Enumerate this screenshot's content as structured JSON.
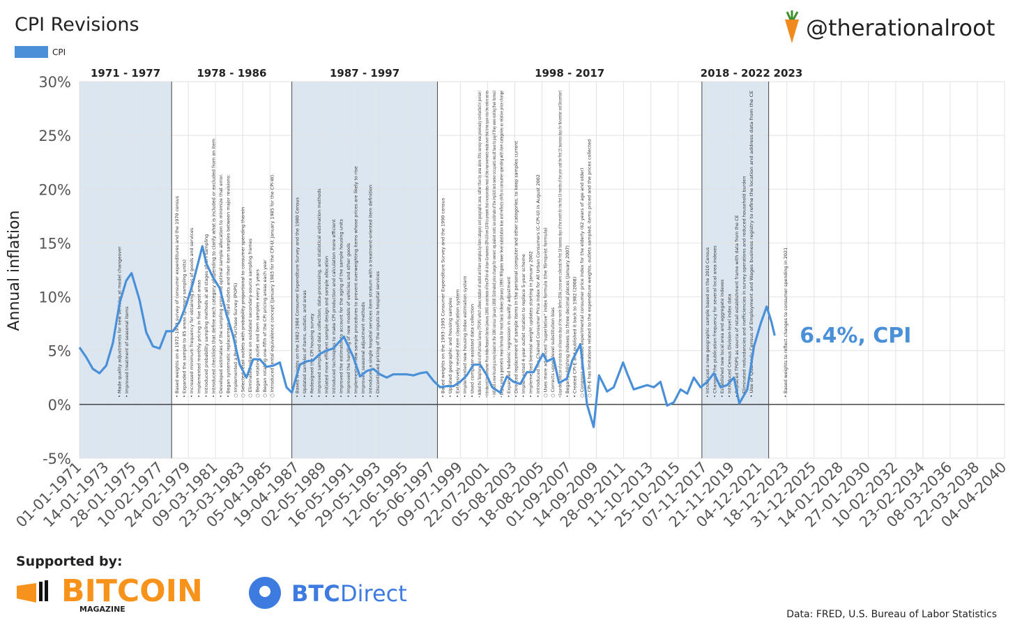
{
  "chart_data": {
    "type": "line",
    "title": "CPI Revisions",
    "watermark": "@therationalroot",
    "ylabel": "Annual inflation",
    "series": [
      {
        "name": "CPI",
        "color": "#4a90d9",
        "x": [
          1971.0,
          1971.5,
          1972.0,
          1972.5,
          1973.0,
          1973.5,
          1974.0,
          1974.5,
          1974.9,
          1975.5,
          1976.0,
          1976.5,
          1977.0,
          1977.5,
          1978.0,
          1978.5,
          1979.0,
          1979.5,
          1980.2,
          1980.5,
          1981.0,
          1981.5,
          1982.0,
          1982.5,
          1983.0,
          1983.5,
          1984.0,
          1984.5,
          1985.0,
          1985.5,
          1986.0,
          1986.5,
          1986.9,
          1987.5,
          1988.0,
          1988.5,
          1989.0,
          1989.5,
          1990.0,
          1990.8,
          1991.5,
          1992.0,
          1992.5,
          1993.0,
          1993.5,
          1994.0,
          1994.5,
          1995.0,
          1995.5,
          1996.0,
          1996.5,
          1997.0,
          1997.5,
          1998.0,
          1998.5,
          1999.0,
          1999.5,
          2000.0,
          2000.5,
          2001.0,
          2001.5,
          2001.9,
          2002.5,
          2003.0,
          2003.5,
          2004.0,
          2004.5,
          2005.0,
          2005.7,
          2006.0,
          2006.5,
          2006.9,
          2007.5,
          2007.9,
          2008.5,
          2009.0,
          2009.5,
          2009.9,
          2010.5,
          2011.0,
          2011.7,
          2012.0,
          2012.5,
          2013.0,
          2013.5,
          2014.0,
          2014.5,
          2015.0,
          2015.5,
          2016.0,
          2016.5,
          2017.0,
          2017.5,
          2018.0,
          2018.5,
          2019.0,
          2019.5,
          2020.0,
          2020.4,
          2021.0,
          2021.5,
          2022.0,
          2022.45,
          2022.8,
          2023.05
        ],
        "values": [
          5.3,
          4.4,
          3.3,
          2.9,
          3.6,
          5.7,
          9.4,
          11.5,
          12.2,
          9.7,
          6.7,
          5.4,
          5.2,
          6.8,
          6.8,
          7.7,
          9.3,
          11.3,
          14.7,
          13.1,
          11.8,
          10.8,
          8.4,
          6.4,
          3.7,
          2.5,
          4.2,
          4.2,
          3.5,
          3.6,
          3.9,
          1.6,
          1.1,
          3.7,
          4.0,
          4.1,
          4.7,
          5.0,
          5.2,
          6.3,
          4.4,
          2.6,
          3.1,
          3.3,
          2.8,
          2.5,
          2.8,
          2.8,
          2.8,
          2.7,
          2.9,
          3.0,
          2.2,
          1.6,
          1.7,
          1.7,
          2.1,
          2.7,
          3.7,
          3.7,
          2.7,
          1.6,
          1.1,
          2.6,
          2.1,
          1.9,
          3.0,
          3.0,
          4.7,
          4.0,
          4.3,
          2.0,
          2.4,
          4.1,
          5.6,
          0.0,
          -2.1,
          2.7,
          1.2,
          1.6,
          3.9,
          2.9,
          1.4,
          1.6,
          1.8,
          1.6,
          2.1,
          -0.1,
          0.2,
          1.4,
          1.0,
          2.5,
          1.6,
          2.1,
          2.9,
          1.6,
          1.8,
          2.5,
          0.1,
          1.4,
          5.4,
          7.5,
          9.1,
          7.7,
          6.4
        ]
      }
    ],
    "end_label": "6.4%, CPI",
    "xlim": [
      1971.0,
      2040.26
    ],
    "xticks": [
      {
        "value": 1971.0,
        "label": "01-01-1971"
      },
      {
        "value": 1973.04,
        "label": "14-01-1973"
      },
      {
        "value": 1975.08,
        "label": "28-01-1975"
      },
      {
        "value": 1977.11,
        "label": "10-02-1977"
      },
      {
        "value": 1979.15,
        "label": "24-02-1979"
      },
      {
        "value": 1981.19,
        "label": "09-03-1981"
      },
      {
        "value": 1983.22,
        "label": "23-03-1983"
      },
      {
        "value": 1985.26,
        "label": "05-04-1985"
      },
      {
        "value": 1987.3,
        "label": "19-04-1987"
      },
      {
        "value": 1989.33,
        "label": "02-05-1989"
      },
      {
        "value": 1991.37,
        "label": "16-05-1991"
      },
      {
        "value": 1993.41,
        "label": "29-05-1993"
      },
      {
        "value": 1995.45,
        "label": "12-06-1995"
      },
      {
        "value": 1997.48,
        "label": "25-06-1997"
      },
      {
        "value": 1999.52,
        "label": "09-07-1999"
      },
      {
        "value": 2001.55,
        "label": "22-07-2001"
      },
      {
        "value": 2003.59,
        "label": "05-08-2003"
      },
      {
        "value": 2005.63,
        "label": "18-08-2005"
      },
      {
        "value": 2007.67,
        "label": "01-09-2007"
      },
      {
        "value": 2009.7,
        "label": "14-09-2009"
      },
      {
        "value": 2011.74,
        "label": "28-09-2011"
      },
      {
        "value": 2013.78,
        "label": "11-10-2013"
      },
      {
        "value": 2015.82,
        "label": "25-10-2015"
      },
      {
        "value": 2017.85,
        "label": "07-11-2017"
      },
      {
        "value": 2019.89,
        "label": "21-11-2019"
      },
      {
        "value": 2021.93,
        "label": "04-12-2021"
      },
      {
        "value": 2023.96,
        "label": "18-12-2023"
      },
      {
        "value": 2026.0,
        "label": "31-12-2025"
      },
      {
        "value": 2028.04,
        "label": "14-01-2028"
      },
      {
        "value": 2030.07,
        "label": "27-01-2030"
      },
      {
        "value": 2032.11,
        "label": "10-02-2032"
      },
      {
        "value": 2034.15,
        "label": "23-02-2034"
      },
      {
        "value": 2036.18,
        "label": "08-03-2036"
      },
      {
        "value": 2038.22,
        "label": "22-03-2038"
      },
      {
        "value": 2040.26,
        "label": "04-04-2040"
      }
    ],
    "ylim": [
      -5,
      30
    ],
    "yticks": [
      {
        "value": -5,
        "label": "-5%"
      },
      {
        "value": 0,
        "label": "0%"
      },
      {
        "value": 5,
        "label": "5%"
      },
      {
        "value": 10,
        "label": "10%"
      },
      {
        "value": 15,
        "label": "15%"
      },
      {
        "value": 20,
        "label": "20%"
      },
      {
        "value": 25,
        "label": "25%"
      },
      {
        "value": 30,
        "label": "30%"
      }
    ],
    "grid": true,
    "eras": [
      {
        "label": "1971 - 1977",
        "start": 1971.0,
        "end": 1977.9,
        "shaded": true,
        "notes": [
          "• Made quality adjustments for new vehicles at model changeover",
          "• Improved treatment of seasonal items"
        ]
      },
      {
        "label": "1978 - 1986",
        "start": 1977.9,
        "end": 1986.9,
        "shaded": false,
        "notes": [
          "• Based weights on a 1972–1973 survey of consumer expenditures and the 1970 census",
          "• Expanded the sample to 85 areas (primary sampling units)",
          "• Increased minimum frequency for obtaining prices of goods and services",
          "• Implemented monthly pricing in five largest areas",
          "• Introduced probability sampling methods at all stages of CPI sampling",
          "• Introduced checklists that define each category of spending to clarify what is included or excluded from an item",
          "• Developed estimates of the sampling error and optimal sample allocation to minimize that error.",
          "• Began systematic replacement of retail outlets and their item samples between major revisions:",
          "○ Implemented a Point-of-Purchase Survey (POPS)",
          "○ Selected retail outlets with probability proportional to consumer spending therein",
          "○ Eliminated reliance on outdated secondary-source sampling frames",
          "○ Began rotating outlet and item samples every 5 years",
          "○ Began rotating one-fifth of the CPI pricing areas each year",
          "○ Introduced rental equivalence concept (January 1983 for the CPI-U; January 1985 for the CPI-W)."
        ]
      },
      {
        "label": "1987 - 1997",
        "start": 1986.9,
        "end": 1997.8,
        "shaded": true,
        "notes": [
          "• Based weights on the 1982–1984 Consumer Expenditure Survey and the 1980 Census",
          "• Updated samples of items, outlets, and areas",
          "• Redesigned the CPI housing survey",
          "• Improved sample and data collection, data-processing, and statistical estimation methods",
          "• Initiated more efficient sample design and sample allocation",
          "• Introduced techniques to make CPI production and calculation more efficient",
          "• Improved the estimator to account for the aging of the sample housing units",
          "• Improved the handling of new models of vehicles and other goods",
          "• Implemented new sample procedures to prevent overweighting items whose prices are likely to rise",
          "• Improved seasonal adjustment methods",
          "• Introduced a single hospital services item stratum with a treatment-oriented item definition",
          "• Discontinued pricing of the inputs to hospital services"
        ]
      },
      {
        "label": "1998 - 2017",
        "start": 1997.8,
        "end": 2017.6,
        "shaded": false,
        "notes": [
          "• Based weights on the 1993–1995 Consumer Expenditure Survey and the 1990 census",
          "• Updated geographic and housing samples",
          "• Extensively revised item classification system",
          "• Implemented new housing index estimation system",
          "• Used computer-assisted data collection",
          "• Added the Telephone Point-of-Purchase Survey (TPOPS) which allows rotation of outlet and item samples by item category and geographic area, rather than by area alone (this survey was previously conducted in person)",
          "• Introduced the Consumer Price Index Research Series (January 1999): an estimate of the CPI for all Urban Consumers (CPI-U) from 1978 to present that incorporates most of the improvements made over that time span into the entire series",
          "• Initiated a new housing survey based on the 1990 census (January 1999): Estimated price change for owners' equivalent rents (an estimate of the implicit rent owner occupants would have to pay if they were renting their homes)",
          "• Began using a geometric mean formula for most basic indexes (January 1999): Mitigates lower level substitution bias and reflects shifts in consumer spending with item categories as relative price change",
          "• Expanded hedonic regression in quality adjustment",
          "• Directed replacement of sample items in the personal computer and other categories, to keep samples current",
          "• Implemented 4-year outlet rotation to replace 5-year scheme",
          "• Implemented biennial weight updates starting in January 2002",
          "• Introduced the Chained Consumer Price Index for All Urban Consumers (C-CPI-U) in August 2002",
          "○ Uses more advanced \"superlative\" index formula (the Törnqvist formula)",
          "○ Corrects upper-level substitution bias",
          "• Expanded collection of price data to all business days of the month (Before 2004, prices were collected the first 18 business days of the month for the first 10 months of the year and the first 15 business days for November and December)",
          "• Began publishing indexes to three decimal places (January 2007)",
          "• Created CPI-E and published it back to 1982 (2008)",
          "○ Congress mandated experimental consumer price index for the elderly (62 years of age and older)",
          "○ CPI-E has limitations related to the expenditure weights, outlets sampled, items priced and the prices collected"
        ]
      },
      {
        "label": "2018 - 2022",
        "start": 2017.6,
        "end": 2022.6,
        "shaded": true,
        "notes": [
          "• Introduced a new geographic sample based on the 2010 Census",
          "• Changed the publication frequency for several local area indexes",
          "• Established new local area and aggregate indexes",
          "• Introduced Census Division-level index data",
          "• Replaced TPOPS as source of retail establishment frame with data from the CE",
          "• Eliminated redundancies and inefficiencies in survey operations and reduced household burden",
          "• Use of Quarterly Census of Employment and Wages business registry to refine the location and address data from the CE"
        ]
      },
      {
        "label": "2023",
        "start": 2022.6,
        "end": 2025.5,
        "shaded": false,
        "notes": [
          "• Based weights to reflect changes to consumer spending in 2021"
        ]
      }
    ],
    "sponsor_heading": "Supported by:",
    "sponsors": [
      "BITCOIN",
      "MAGAZINE",
      "BTC",
      "Direct"
    ],
    "source": "Data: FRED, U.S. Bureau of Labor Statistics"
  }
}
